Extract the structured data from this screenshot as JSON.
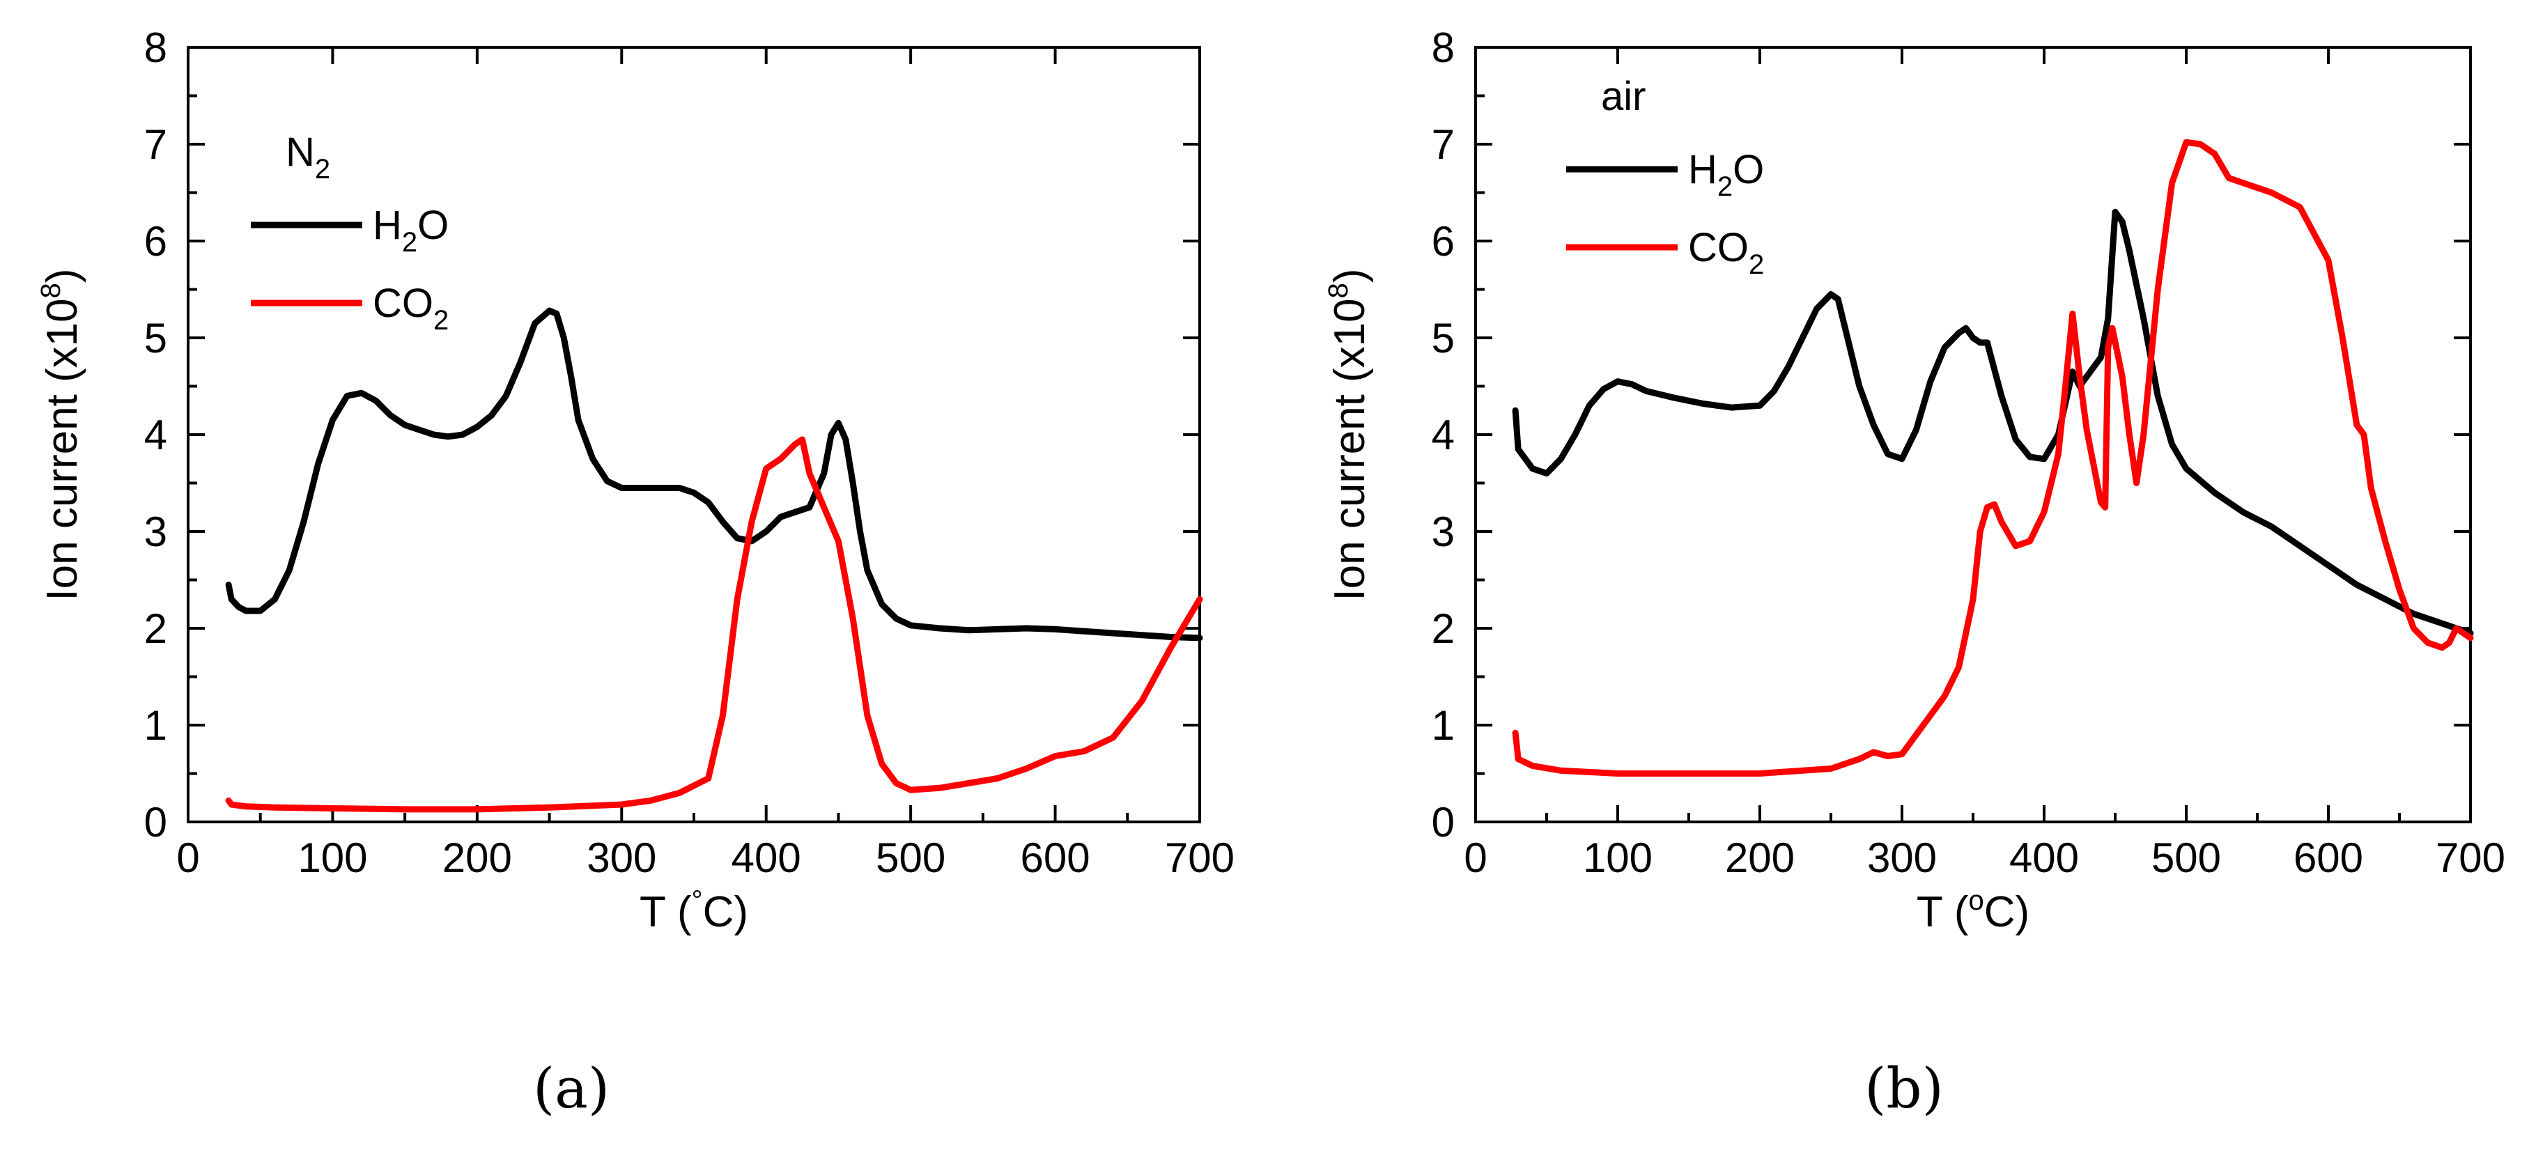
{
  "figure": {
    "captions": [
      "(a)",
      "(b)"
    ]
  },
  "chart_data": [
    {
      "type": "line",
      "title": "",
      "panel_label": "(a)",
      "legend_title_base": "N",
      "legend_title_sub": "2",
      "xlabel_parts": [
        "T (",
        "°",
        "C)"
      ],
      "ylabel_parts": [
        "Ion current (x10",
        "8",
        ")"
      ],
      "xlim": [
        0,
        700
      ],
      "ylim": [
        0,
        8
      ],
      "xticks": [
        0,
        100,
        200,
        300,
        400,
        500,
        600,
        700
      ],
      "yticks": [
        0,
        1,
        2,
        3,
        4,
        5,
        6,
        7,
        8
      ],
      "grid": false,
      "legend_position": "top-left",
      "series": [
        {
          "name": "H2O",
          "label_base": "H",
          "label_sub": "2",
          "label_tail": "O",
          "color": "#000000",
          "x": [
            28,
            30,
            35,
            40,
            50,
            60,
            70,
            80,
            90,
            100,
            110,
            120,
            130,
            140,
            150,
            160,
            170,
            180,
            190,
            200,
            210,
            220,
            230,
            240,
            250,
            255,
            260,
            265,
            270,
            280,
            290,
            300,
            310,
            320,
            330,
            340,
            350,
            360,
            370,
            380,
            390,
            400,
            410,
            420,
            430,
            440,
            445,
            450,
            455,
            460,
            465,
            470,
            480,
            490,
            500,
            520,
            540,
            560,
            580,
            600,
            620,
            640,
            660,
            680,
            700
          ],
          "y": [
            2.45,
            2.3,
            2.22,
            2.18,
            2.18,
            2.3,
            2.6,
            3.1,
            3.7,
            4.15,
            4.4,
            4.43,
            4.35,
            4.2,
            4.1,
            4.05,
            4.0,
            3.98,
            4.0,
            4.08,
            4.2,
            4.4,
            4.75,
            5.15,
            5.28,
            5.25,
            5.0,
            4.6,
            4.15,
            3.75,
            3.52,
            3.45,
            3.45,
            3.45,
            3.45,
            3.45,
            3.4,
            3.3,
            3.1,
            2.93,
            2.9,
            3.0,
            3.15,
            3.2,
            3.25,
            3.6,
            4.0,
            4.12,
            3.95,
            3.5,
            3.0,
            2.6,
            2.25,
            2.1,
            2.03,
            2.0,
            1.98,
            1.99,
            2.0,
            1.99,
            1.97,
            1.95,
            1.93,
            1.91,
            1.9
          ]
        },
        {
          "name": "CO2",
          "label_base": "CO",
          "label_sub": "2",
          "label_tail": "",
          "color": "#ff0000",
          "x": [
            28,
            30,
            40,
            60,
            100,
            150,
            200,
            250,
            300,
            320,
            340,
            360,
            370,
            380,
            390,
            400,
            410,
            420,
            425,
            430,
            440,
            450,
            460,
            470,
            480,
            490,
            500,
            520,
            540,
            560,
            580,
            600,
            620,
            640,
            660,
            680,
            700
          ],
          "y": [
            0.22,
            0.18,
            0.16,
            0.15,
            0.14,
            0.13,
            0.13,
            0.15,
            0.18,
            0.22,
            0.3,
            0.45,
            1.1,
            2.3,
            3.1,
            3.65,
            3.75,
            3.9,
            3.95,
            3.6,
            3.25,
            2.9,
            2.1,
            1.1,
            0.6,
            0.4,
            0.33,
            0.35,
            0.4,
            0.45,
            0.55,
            0.68,
            0.73,
            0.87,
            1.25,
            1.8,
            2.3
          ]
        }
      ]
    },
    {
      "type": "line",
      "title": "",
      "panel_label": "(b)",
      "legend_title_base": "air",
      "legend_title_sub": "",
      "xlabel_parts": [
        "T (",
        "o",
        "C)"
      ],
      "ylabel_parts": [
        "Ion current (x10",
        "8",
        ")"
      ],
      "xlim": [
        0,
        700
      ],
      "ylim": [
        0,
        8
      ],
      "xticks": [
        0,
        100,
        200,
        300,
        400,
        500,
        600,
        700
      ],
      "yticks": [
        0,
        1,
        2,
        3,
        4,
        5,
        6,
        7,
        8
      ],
      "grid": false,
      "legend_position": "top-left",
      "series": [
        {
          "name": "H2O",
          "label_base": "H",
          "label_sub": "2",
          "label_tail": "O",
          "color": "#000000",
          "x": [
            28,
            30,
            40,
            50,
            60,
            70,
            80,
            90,
            100,
            110,
            120,
            140,
            160,
            180,
            200,
            210,
            220,
            230,
            240,
            250,
            255,
            260,
            270,
            280,
            290,
            300,
            310,
            320,
            330,
            340,
            345,
            350,
            355,
            360,
            370,
            380,
            390,
            400,
            410,
            420,
            425,
            430,
            440,
            445,
            450,
            455,
            460,
            470,
            480,
            490,
            500,
            520,
            540,
            560,
            580,
            600,
            620,
            640,
            660,
            680,
            700
          ],
          "y": [
            4.25,
            3.85,
            3.65,
            3.6,
            3.75,
            4.0,
            4.3,
            4.47,
            4.55,
            4.52,
            4.45,
            4.38,
            4.32,
            4.28,
            4.3,
            4.45,
            4.7,
            5.0,
            5.3,
            5.45,
            5.4,
            5.1,
            4.5,
            4.1,
            3.8,
            3.75,
            4.05,
            4.55,
            4.9,
            5.05,
            5.1,
            5.0,
            4.95,
            4.95,
            4.4,
            3.95,
            3.77,
            3.75,
            4.0,
            4.65,
            4.5,
            4.6,
            4.8,
            5.2,
            6.3,
            6.2,
            5.9,
            5.2,
            4.4,
            3.9,
            3.65,
            3.4,
            3.2,
            3.05,
            2.85,
            2.65,
            2.45,
            2.3,
            2.15,
            2.05,
            1.95
          ]
        },
        {
          "name": "CO2",
          "label_base": "CO",
          "label_sub": "2",
          "label_tail": "",
          "color": "#ff0000",
          "x": [
            28,
            30,
            40,
            60,
            100,
            150,
            200,
            250,
            270,
            280,
            290,
            300,
            310,
            320,
            330,
            340,
            350,
            355,
            360,
            365,
            370,
            380,
            390,
            400,
            410,
            415,
            420,
            425,
            430,
            440,
            443,
            445,
            448,
            455,
            460,
            465,
            470,
            480,
            490,
            500,
            510,
            520,
            530,
            540,
            560,
            580,
            600,
            610,
            620,
            625,
            630,
            640,
            650,
            660,
            670,
            680,
            685,
            690,
            700
          ],
          "y": [
            0.92,
            0.65,
            0.58,
            0.53,
            0.5,
            0.5,
            0.5,
            0.55,
            0.65,
            0.72,
            0.68,
            0.7,
            0.9,
            1.1,
            1.3,
            1.6,
            2.3,
            3.0,
            3.25,
            3.28,
            3.1,
            2.85,
            2.9,
            3.2,
            3.8,
            4.5,
            5.25,
            4.6,
            4.05,
            3.3,
            3.25,
            4.9,
            5.1,
            4.6,
            4.0,
            3.5,
            4.0,
            5.5,
            6.6,
            7.02,
            7.0,
            6.9,
            6.65,
            6.6,
            6.5,
            6.35,
            5.8,
            5.0,
            4.1,
            4.0,
            3.45,
            2.9,
            2.4,
            2.0,
            1.85,
            1.8,
            1.85,
            2.0,
            1.9
          ]
        }
      ]
    }
  ]
}
